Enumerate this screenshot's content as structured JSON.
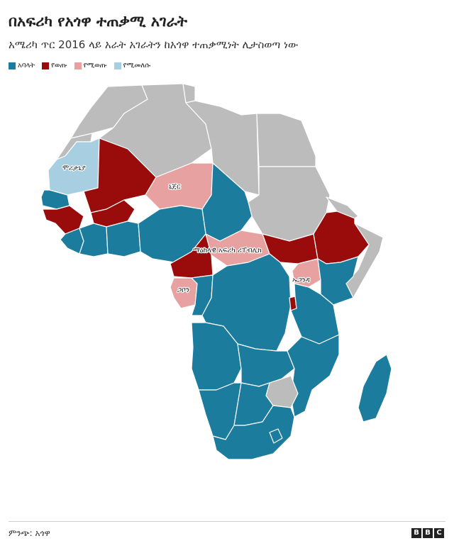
{
  "header": {
    "title": "በአፍሪካ የአጎዋ ተጠቃሚ አገራት",
    "subtitle": "አሜሪካ ጥር 2016 ላይ አራት አገራትን ከአጎዋ ተጠቃሚነት ሊታስወጣ ነው"
  },
  "legend": [
    {
      "label": "አባላት",
      "color": "#1b7c9e"
    },
    {
      "label": "የወጡ",
      "color": "#9a0c0c"
    },
    {
      "label": "የሚወጡ",
      "color": "#e8a1a1"
    },
    {
      "label": "የሚመለሱ",
      "color": "#a7cfe1"
    }
  ],
  "colors": {
    "non_member": "#bcbcbc",
    "border": "#ffffff"
  },
  "map_labels": {
    "mauritania": "ሞሪታኒያ",
    "niger": "ኒጀር",
    "car": "ማዕከላዊ አፍሪካ ሪፐብሊክ",
    "uganda": "ኡጋንዳ",
    "gabon": "ጋቦን"
  },
  "footer": {
    "source": "ምንጭ: አጎዋ",
    "logo_letters": [
      "B",
      "B",
      "C"
    ]
  }
}
